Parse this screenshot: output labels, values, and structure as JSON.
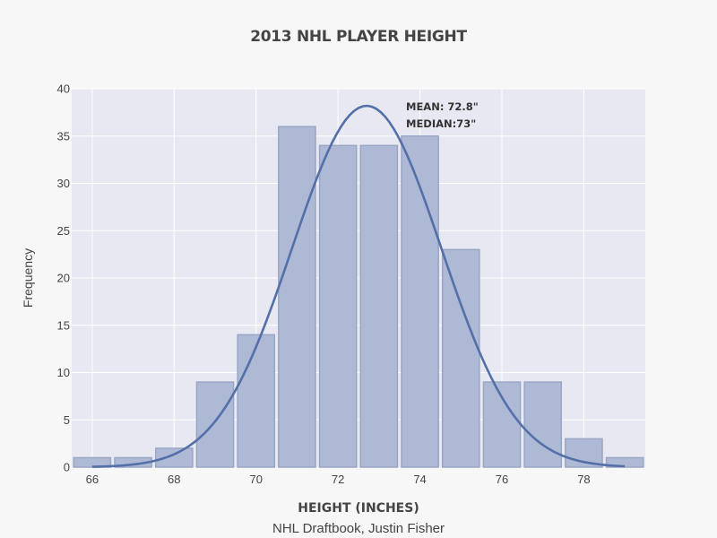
{
  "chart_data": {
    "type": "bar",
    "title": "2013 NHL PLAYER HEIGHT",
    "xlabel": "HEIGHT (INCHES)",
    "xsubtitle": "NHL Draftbook, Justin Fisher",
    "ylabel": "Frequency",
    "x": [
      66,
      67,
      68,
      69,
      70,
      71,
      72,
      73,
      74,
      75,
      76,
      77,
      78,
      79
    ],
    "values": [
      1,
      1,
      2,
      9,
      14,
      36,
      34,
      34,
      35,
      23,
      9,
      9,
      3,
      1
    ],
    "xlim": [
      65.5,
      79.5
    ],
    "ylim": [
      0,
      40
    ],
    "xticks": [
      66,
      68,
      70,
      72,
      74,
      76,
      78
    ],
    "yticks": [
      0,
      5,
      10,
      15,
      20,
      25,
      30,
      35,
      40
    ],
    "curve": {
      "type": "normal",
      "mean": 72.7,
      "peak": 38.2,
      "sigma": 1.82,
      "x_range": [
        66,
        79
      ]
    },
    "annotations": [
      "MEAN: 72.8\"",
      "MEDIAN:73\""
    ],
    "grid": true,
    "colors": {
      "bar_fill": "#aeb9d6",
      "bar_edge": "#9aa6c4",
      "curve": "#5470a8",
      "plot_bg": "#e8e8f2",
      "grid": "#ffffff"
    }
  }
}
